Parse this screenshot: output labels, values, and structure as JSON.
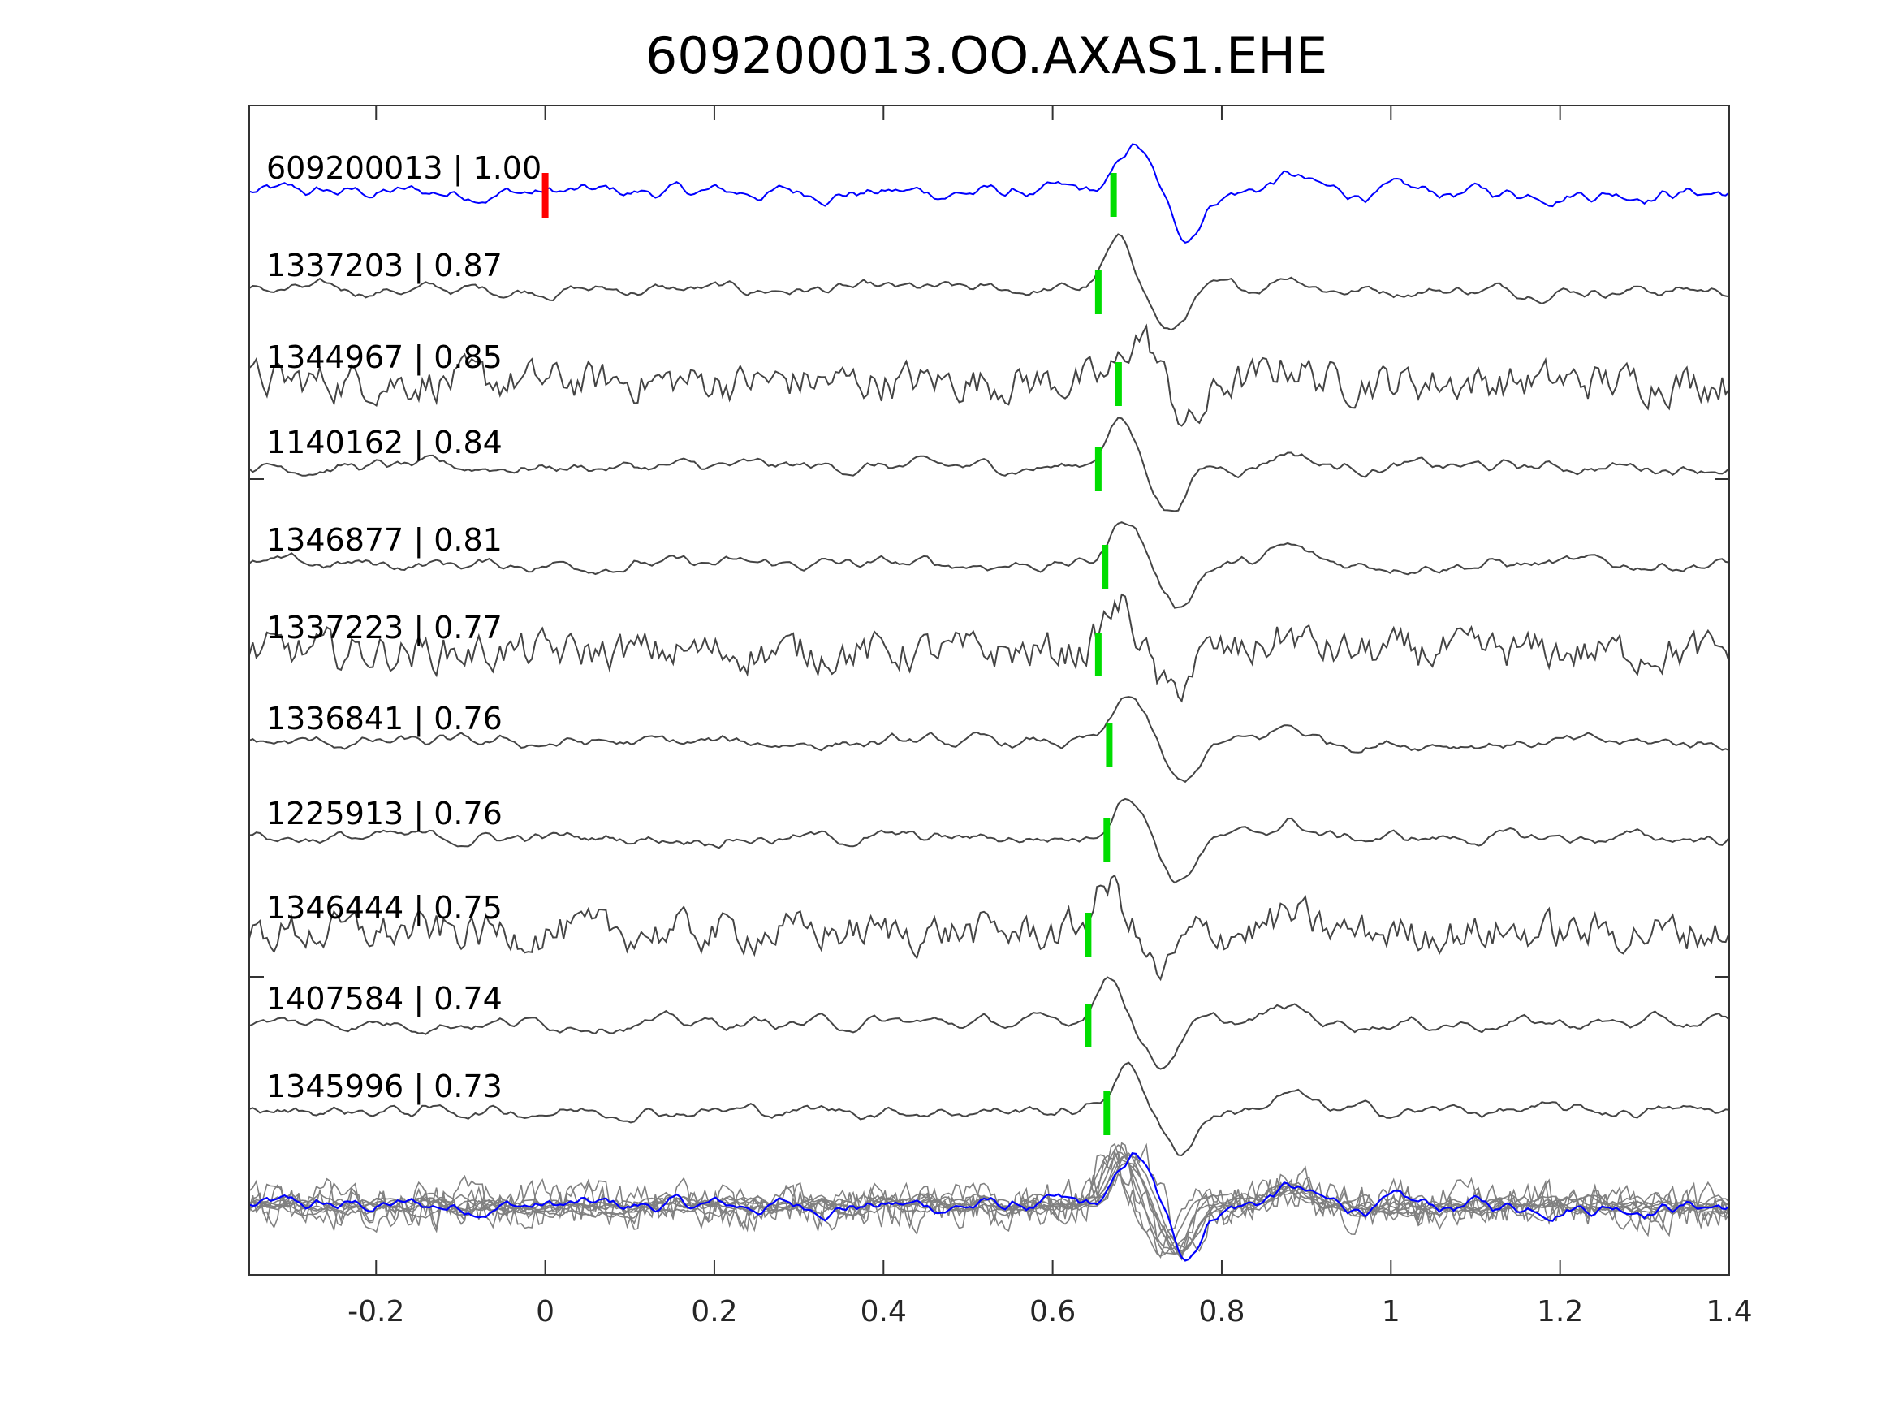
{
  "chart_data": {
    "type": "line",
    "title": "609200013.OO.AXAS1.EHE",
    "xlabel": "",
    "ylabel": "",
    "xlim": [
      -0.35,
      1.4
    ],
    "xticks": [
      -0.2,
      0,
      0.2,
      0.4,
      0.6,
      0.8,
      1,
      1.2,
      1.4
    ],
    "xtick_labels": [
      "-0.2",
      "0",
      "0.2",
      "0.4",
      "0.6",
      "0.8",
      "1",
      "1.2",
      "1.4"
    ],
    "grid": false,
    "colors": {
      "template": "#0000ff",
      "match": "#444444",
      "stack": "#808080",
      "origin_pick": "#ff0000",
      "phase_pick": "#00dd00"
    },
    "origin_pick_time": 0,
    "traces": [
      {
        "label": "609200013 | 1.00",
        "id": "609200013",
        "cc": 1.0,
        "pick": 0.672,
        "template": true
      },
      {
        "label": "1337203 | 0.87",
        "id": "1337203",
        "cc": 0.87,
        "pick": 0.654
      },
      {
        "label": "1344967 | 0.85",
        "id": "1344967",
        "cc": 0.85,
        "pick": 0.678
      },
      {
        "label": "1140162 | 0.84",
        "id": "1140162",
        "cc": 0.84,
        "pick": 0.654
      },
      {
        "label": "1346877 | 0.81",
        "id": "1346877",
        "cc": 0.81,
        "pick": 0.662
      },
      {
        "label": "1337223 | 0.77",
        "id": "1337223",
        "cc": 0.77,
        "pick": 0.654
      },
      {
        "label": "1336841 | 0.76",
        "id": "1336841",
        "cc": 0.76,
        "pick": 0.667
      },
      {
        "label": "1225913 | 0.76",
        "id": "1225913",
        "cc": 0.76,
        "pick": 0.664
      },
      {
        "label": "1346444 | 0.75",
        "id": "1346444",
        "cc": 0.75,
        "pick": 0.642
      },
      {
        "label": "1407584 | 0.74",
        "id": "1407584",
        "cc": 0.74,
        "pick": 0.642
      },
      {
        "label": "1345996 | 0.73",
        "id": "1345996",
        "cc": 0.73,
        "pick": 0.664
      }
    ]
  }
}
